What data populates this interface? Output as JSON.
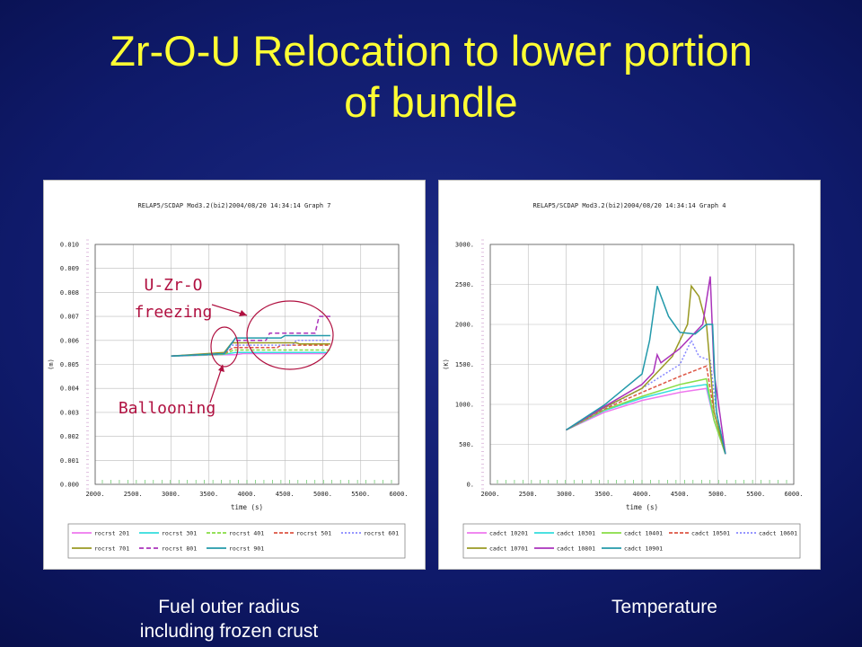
{
  "slide": {
    "title_line1": "Zr-O-U Relocation to lower portion",
    "title_line2": "of bundle",
    "caption_left_line1": "Fuel outer radius",
    "caption_left_line2": "including frozen crust",
    "caption_right": "Temperature"
  },
  "colors": {
    "background": "#0f1a6a",
    "title": "#ffff33",
    "annotation": "#b01040"
  },
  "chart_data": [
    {
      "type": "line",
      "header": "RELAP5/SCDAP Mod3.2(bi2)2004/08/20   14:34:14   Graph   7",
      "xlabel": "time (s)",
      "ylabel": "(m)",
      "xlim": [
        2000,
        6000
      ],
      "ylim": [
        0.0,
        0.01
      ],
      "x_ticks": [
        "2000.",
        "2500.",
        "3000.",
        "3500.",
        "4000.",
        "4500.",
        "5000.",
        "5500.",
        "6000."
      ],
      "y_ticks": [
        "0.000",
        "0.001",
        "0.002",
        "0.003",
        "0.004",
        "0.005",
        "0.006",
        "0.007",
        "0.008",
        "0.009",
        "0.010"
      ],
      "grid": true,
      "legend": "bottom",
      "annotations": [
        {
          "text_line1": "U-Zr-O",
          "text_line2": "freezing"
        },
        {
          "text_line1": "Ballooning"
        }
      ],
      "series": [
        {
          "name": "rocrst 201",
          "color": "#ee77ee",
          "dash": "",
          "points": [
            [
              3000,
              0.00535
            ],
            [
              3700,
              0.0054
            ],
            [
              3850,
              0.0054
            ],
            [
              3950,
              0.00545
            ],
            [
              5050,
              0.00545
            ]
          ]
        },
        {
          "name": "rocrst 301",
          "color": "#33dddd",
          "dash": "",
          "points": [
            [
              3000,
              0.00535
            ],
            [
              3700,
              0.00542
            ],
            [
              3850,
              0.0055
            ],
            [
              3950,
              0.0055
            ],
            [
              5050,
              0.0055
            ]
          ]
        },
        {
          "name": "rocrst 401",
          "color": "#88dd44",
          "dash": "4,2",
          "points": [
            [
              3000,
              0.00535
            ],
            [
              3700,
              0.00542
            ],
            [
              3830,
              0.0056
            ],
            [
              3950,
              0.0056
            ],
            [
              5100,
              0.0056
            ]
          ]
        },
        {
          "name": "rocrst 501",
          "color": "#dd5544",
          "dash": "4,2",
          "points": [
            [
              3000,
              0.00535
            ],
            [
              3700,
              0.00545
            ],
            [
              3820,
              0.0057
            ],
            [
              4400,
              0.0057
            ],
            [
              4450,
              0.0058
            ],
            [
              5100,
              0.0058
            ]
          ]
        },
        {
          "name": "rocrst 601",
          "color": "#8888ff",
          "dash": "2,2",
          "points": [
            [
              3000,
              0.00535
            ],
            [
              3700,
              0.00545
            ],
            [
              3800,
              0.0058
            ],
            [
              4600,
              0.0058
            ],
            [
              4650,
              0.006
            ],
            [
              5100,
              0.006
            ]
          ]
        },
        {
          "name": "rocrst 701",
          "color": "#999922",
          "dash": "",
          "points": [
            [
              3000,
              0.00535
            ],
            [
              3700,
              0.0055
            ],
            [
              3800,
              0.0059
            ],
            [
              4650,
              0.0059
            ],
            [
              4700,
              0.00585
            ],
            [
              5100,
              0.00585
            ]
          ]
        },
        {
          "name": "rocrst 801",
          "color": "#aa33bb",
          "dash": "5,3",
          "points": [
            [
              3000,
              0.00535
            ],
            [
              3700,
              0.00545
            ],
            [
              3830,
              0.006
            ],
            [
              4250,
              0.006
            ],
            [
              4300,
              0.0063
            ],
            [
              4900,
              0.0063
            ],
            [
              4950,
              0.007
            ],
            [
              5100,
              0.007
            ]
          ]
        },
        {
          "name": "rocrst 901",
          "color": "#2299aa",
          "dash": "",
          "points": [
            [
              3000,
              0.00535
            ],
            [
              3700,
              0.00545
            ],
            [
              3850,
              0.0061
            ],
            [
              4450,
              0.0061
            ],
            [
              4500,
              0.0062
            ],
            [
              5100,
              0.0062
            ]
          ]
        }
      ]
    },
    {
      "type": "line",
      "header": "RELAP5/SCDAP Mod3.2(bi2)2004/08/20   14:34:14   Graph   4",
      "xlabel": "time (s)",
      "ylabel": "(K)",
      "xlim": [
        2000,
        6000
      ],
      "ylim": [
        0,
        3000
      ],
      "x_ticks": [
        "2000.",
        "2500.",
        "3000.",
        "3500.",
        "4000.",
        "4500.",
        "5000.",
        "5500.",
        "6000."
      ],
      "y_ticks": [
        "0.",
        "500.",
        "1000.",
        "1500.",
        "2000.",
        "2500.",
        "3000."
      ],
      "grid": true,
      "legend": "bottom",
      "series": [
        {
          "name": "cadct 10201",
          "color": "#ee77ee",
          "dash": "",
          "points": [
            [
              3000,
              680
            ],
            [
              3500,
              900
            ],
            [
              4000,
              1050
            ],
            [
              4500,
              1150
            ],
            [
              4850,
              1200
            ],
            [
              4950,
              800
            ],
            [
              5100,
              380
            ]
          ]
        },
        {
          "name": "cadct 10301",
          "color": "#33dddd",
          "dash": "",
          "points": [
            [
              3000,
              680
            ],
            [
              3500,
              920
            ],
            [
              4000,
              1080
            ],
            [
              4500,
              1200
            ],
            [
              4850,
              1250
            ],
            [
              4950,
              800
            ],
            [
              5100,
              380
            ]
          ]
        },
        {
          "name": "cadct 10401",
          "color": "#88dd44",
          "dash": "",
          "points": [
            [
              3000,
              680
            ],
            [
              3500,
              930
            ],
            [
              4000,
              1100
            ],
            [
              4500,
              1250
            ],
            [
              4850,
              1320
            ],
            [
              4950,
              800
            ],
            [
              5100,
              380
            ]
          ]
        },
        {
          "name": "cadct 10501",
          "color": "#dd5544",
          "dash": "4,2",
          "points": [
            [
              3000,
              680
            ],
            [
              3500,
              940
            ],
            [
              4000,
              1150
            ],
            [
              4500,
              1350
            ],
            [
              4850,
              1480
            ],
            [
              4950,
              900
            ],
            [
              5100,
              380
            ]
          ]
        },
        {
          "name": "cadct 10601",
          "color": "#8888ff",
          "dash": "2,2",
          "points": [
            [
              3000,
              680
            ],
            [
              3500,
              950
            ],
            [
              4000,
              1200
            ],
            [
              4500,
              1500
            ],
            [
              4650,
              1800
            ],
            [
              4750,
              1600
            ],
            [
              4900,
              1550
            ],
            [
              4980,
              900
            ],
            [
              5100,
              380
            ]
          ]
        },
        {
          "name": "cadct 10701",
          "color": "#999922",
          "dash": "",
          "points": [
            [
              3000,
              680
            ],
            [
              3500,
              960
            ],
            [
              4000,
              1200
            ],
            [
              4400,
              1600
            ],
            [
              4600,
              2000
            ],
            [
              4650,
              2480
            ],
            [
              4750,
              2350
            ],
            [
              4850,
              2000
            ],
            [
              4950,
              900
            ],
            [
              5100,
              380
            ]
          ]
        },
        {
          "name": "cadct 10801",
          "color": "#aa33bb",
          "dash": "",
          "points": [
            [
              3000,
              680
            ],
            [
              3500,
              970
            ],
            [
              4000,
              1250
            ],
            [
              4150,
              1400
            ],
            [
              4200,
              1620
            ],
            [
              4250,
              1520
            ],
            [
              4500,
              1700
            ],
            [
              4800,
              2000
            ],
            [
              4900,
              2600
            ],
            [
              4950,
              1400
            ],
            [
              5100,
              380
            ]
          ]
        },
        {
          "name": "cadct 10901",
          "color": "#2299aa",
          "dash": "",
          "points": [
            [
              3000,
              680
            ],
            [
              3500,
              990
            ],
            [
              4000,
              1380
            ],
            [
              4100,
              1800
            ],
            [
              4200,
              2480
            ],
            [
              4350,
              2100
            ],
            [
              4500,
              1900
            ],
            [
              4700,
              1880
            ],
            [
              4850,
              2000
            ],
            [
              4930,
              2000
            ],
            [
              4980,
              900
            ],
            [
              5100,
              380
            ]
          ]
        }
      ]
    }
  ]
}
